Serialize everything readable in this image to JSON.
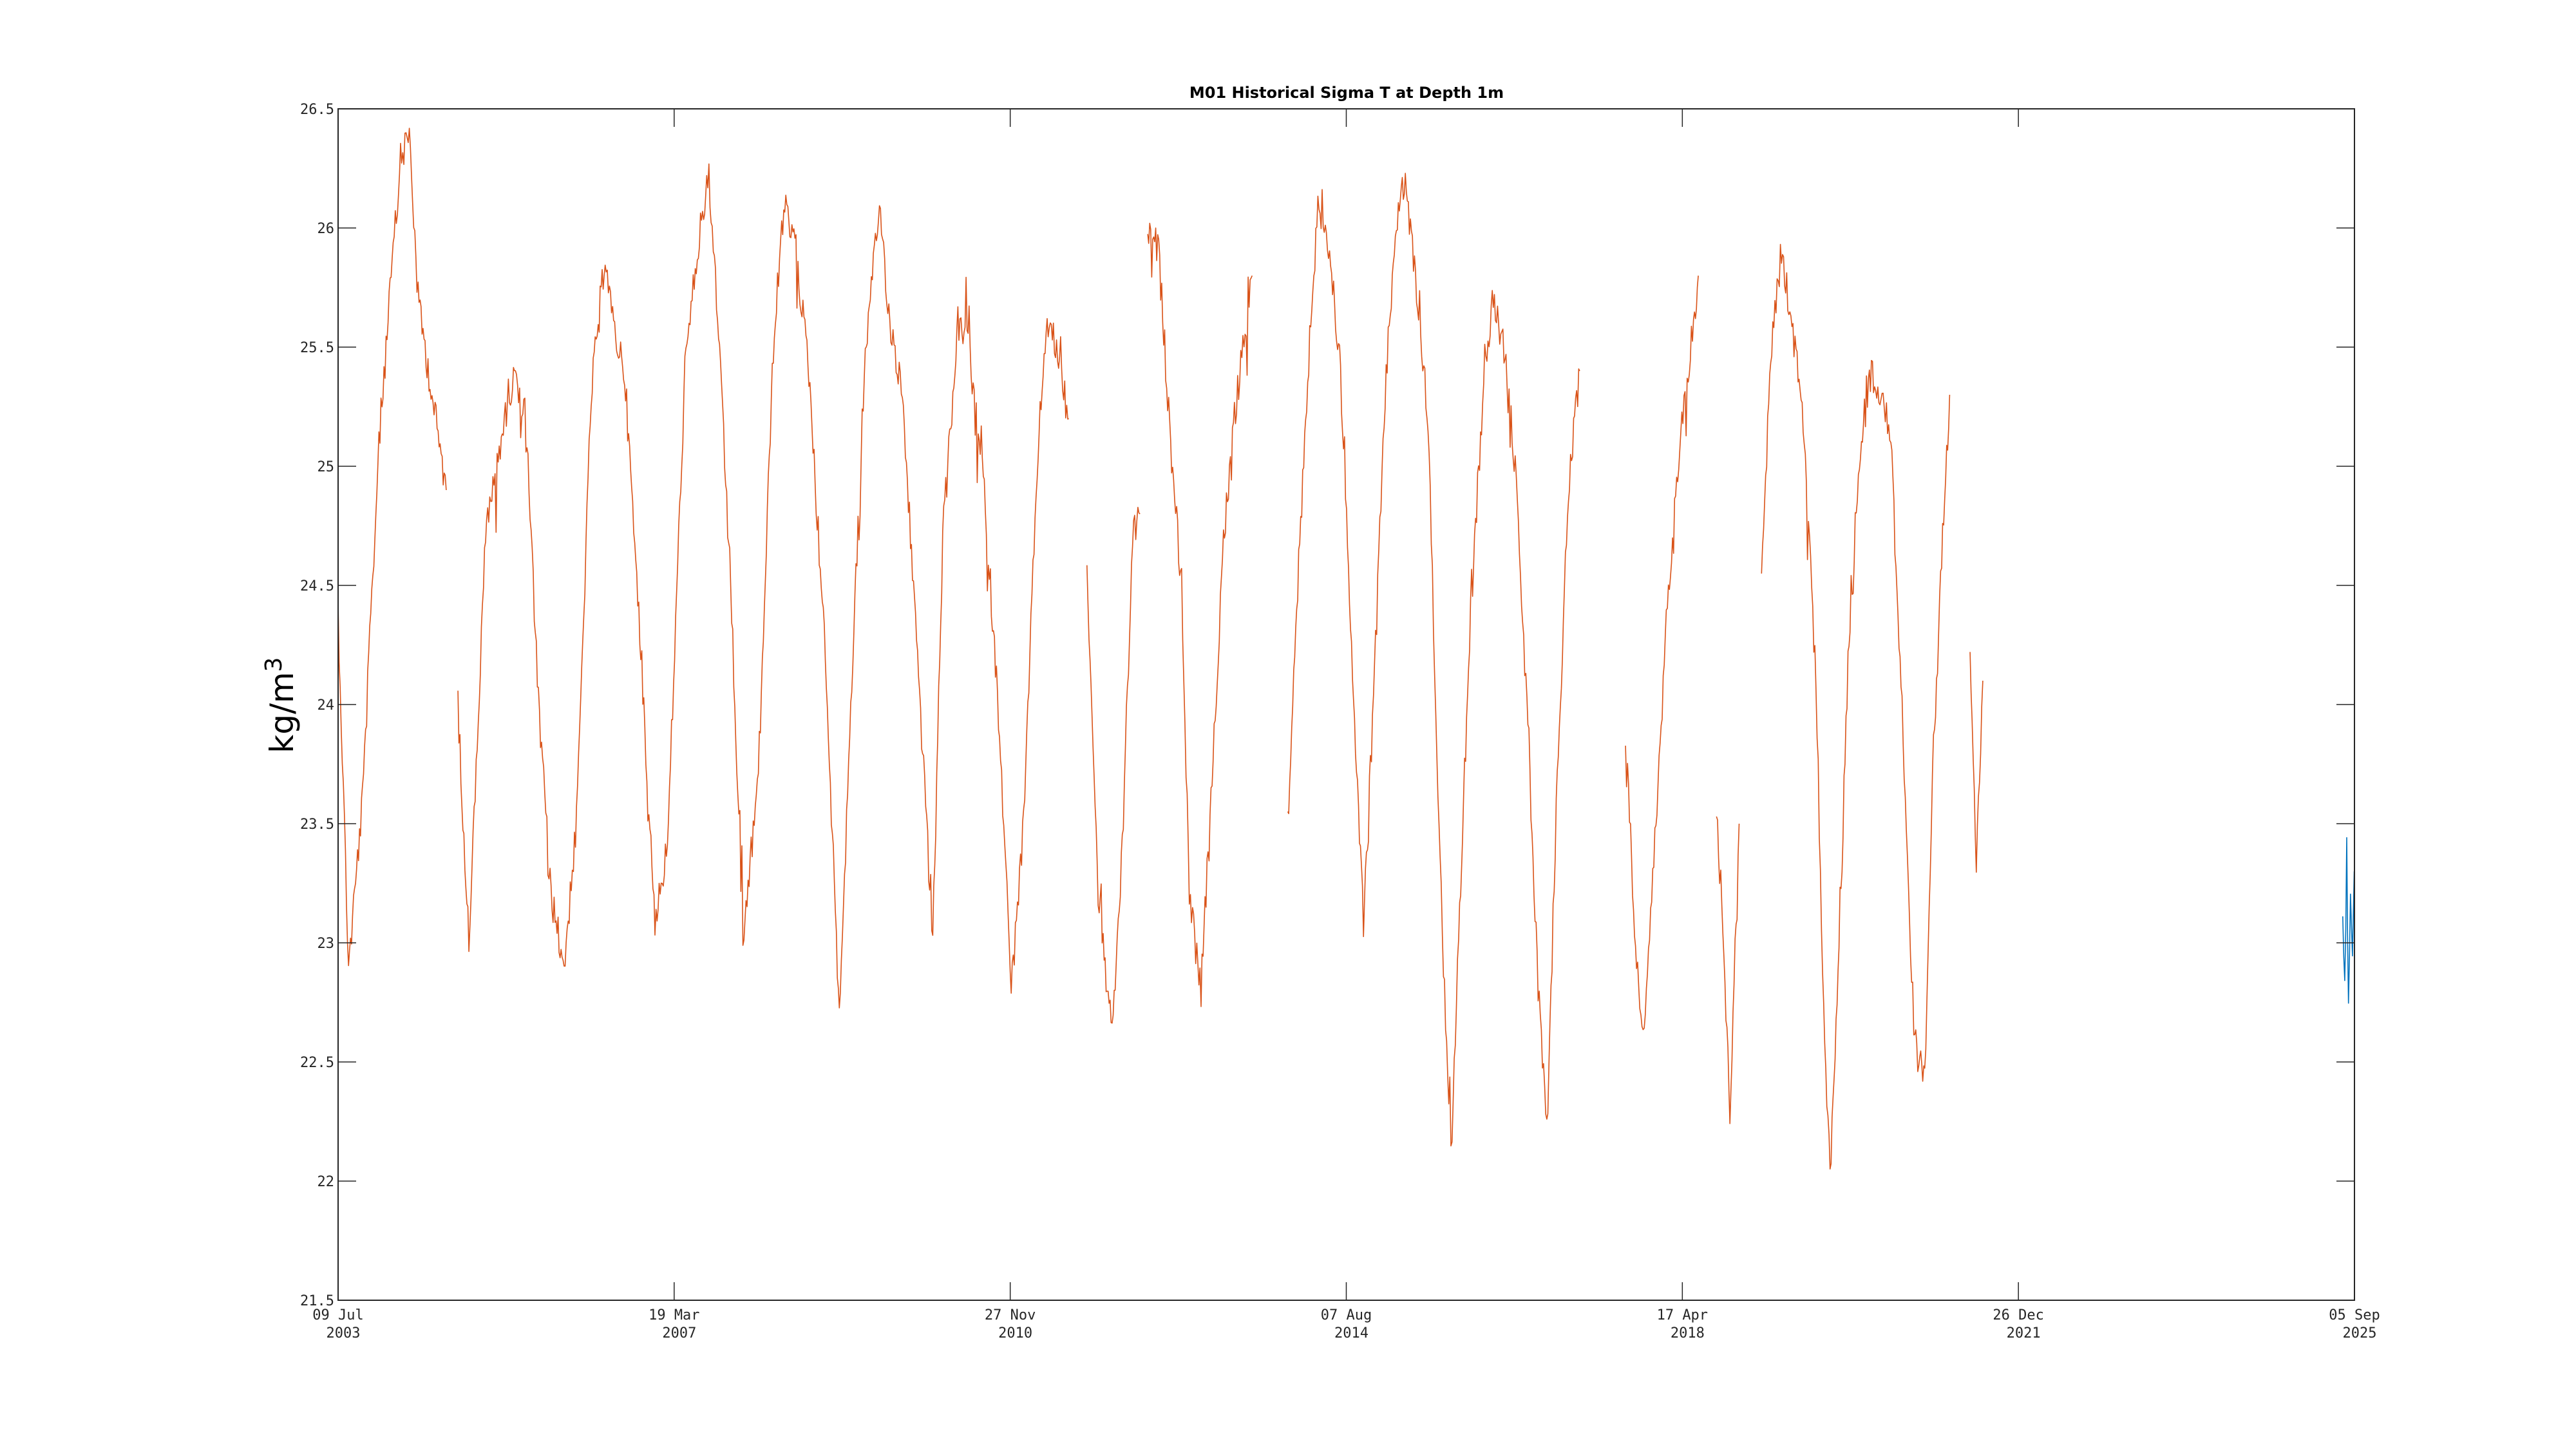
{
  "chart_data": {
    "type": "line",
    "title": "M01 Historical Sigma T at Depth 1m",
    "xlabel": "",
    "ylabel": "kg/m",
    "ylabel_superscript": "3",
    "ylim": [
      21.5,
      26.5
    ],
    "xlim": [
      "2003-07-09",
      "2025-09-05"
    ],
    "yticks": [
      "21.5",
      "22",
      "22.5",
      "23",
      "23.5",
      "24",
      "24.5",
      "25",
      "25.5",
      "26",
      "26.5"
    ],
    "xticks": [
      {
        "date": "2003-07-09",
        "line1": "09 Jul",
        "line2": "2003"
      },
      {
        "date": "2007-03-19",
        "line1": "19 Mar",
        "line2": "2007"
      },
      {
        "date": "2010-11-27",
        "line1": "27 Nov",
        "line2": "2010"
      },
      {
        "date": "2014-08-07",
        "line1": "07 Aug",
        "line2": "2014"
      },
      {
        "date": "2018-04-17",
        "line1": "17 Apr",
        "line2": "2018"
      },
      {
        "date": "2021-12-26",
        "line1": "26 Dec",
        "line2": "2021"
      },
      {
        "date": "2025-09-05",
        "line1": "05 Sep",
        "line2": "2025"
      }
    ],
    "grid": false,
    "legend": "none",
    "series": [
      {
        "color": "#d95319",
        "segments": [
          [
            [
              "2003-07-09",
              24.4
            ],
            [
              "2003-08-20",
              22.9
            ],
            [
              "2003-10-15",
              23.6
            ],
            [
              "2003-12-20",
              25.1
            ],
            [
              "2004-02-15",
              25.9
            ],
            [
              "2004-03-20",
              26.3
            ],
            [
              "2004-04-20",
              26.4
            ],
            [
              "2004-05-25",
              25.7
            ],
            [
              "2004-07-20",
              25.3
            ],
            [
              "2004-09-15",
              24.9
            ]
          ],
          [
            [
              "2004-11-01",
              24.0
            ],
            [
              "2004-12-15",
              23.0
            ],
            [
              "2005-02-20",
              24.7
            ],
            [
              "2005-04-20",
              25.1
            ],
            [
              "2005-06-20",
              25.4
            ],
            [
              "2005-08-01",
              25.2
            ],
            [
              "2005-09-20",
              24.0
            ],
            [
              "2005-11-10",
              23.2
            ],
            [
              "2006-01-01",
              22.9
            ],
            [
              "2006-02-20",
              23.5
            ],
            [
              "2006-04-20",
              25.3
            ],
            [
              "2006-06-15",
              25.9
            ],
            [
              "2006-07-15",
              25.6
            ],
            [
              "2006-09-01",
              25.4
            ],
            [
              "2006-11-01",
              24.3
            ],
            [
              "2007-01-01",
              23.1
            ],
            [
              "2007-02-20",
              23.4
            ],
            [
              "2007-05-01",
              25.4
            ],
            [
              "2007-06-20",
              25.9
            ],
            [
              "2007-08-01",
              26.2
            ],
            [
              "2007-09-01",
              25.8
            ],
            [
              "2007-11-01",
              24.5
            ],
            [
              "2007-12-20",
              23.0
            ],
            [
              "2008-02-20",
              23.7
            ],
            [
              "2008-04-20",
              25.5
            ],
            [
              "2008-06-01",
              26.1
            ],
            [
              "2008-07-20",
              25.9
            ],
            [
              "2008-09-10",
              25.4
            ],
            [
              "2008-11-15",
              24.2
            ],
            [
              "2009-01-10",
              22.7
            ],
            [
              "2009-03-01",
              24.1
            ],
            [
              "2009-04-20",
              25.4
            ],
            [
              "2009-06-20",
              26.1
            ],
            [
              "2009-08-01",
              25.6
            ],
            [
              "2009-09-20",
              25.3
            ],
            [
              "2009-11-20",
              24.2
            ],
            [
              "2010-01-20",
              23.0
            ],
            [
              "2010-03-01",
              24.7
            ],
            [
              "2010-05-01",
              25.6
            ],
            [
              "2010-06-15",
              25.5
            ],
            [
              "2010-08-15",
              24.9
            ],
            [
              "2010-10-15",
              23.9
            ],
            [
              "2010-12-01",
              22.8
            ],
            [
              "2011-01-20",
              23.5
            ],
            [
              "2011-03-15",
              25.0
            ],
            [
              "2011-04-20",
              25.6
            ],
            [
              "2011-06-01",
              25.5
            ],
            [
              "2011-07-20",
              25.2
            ]
          ],
          [
            [
              "2011-10-01",
              24.6
            ],
            [
              "2011-11-15",
              23.2
            ],
            [
              "2012-01-10",
              22.6
            ],
            [
              "2012-02-20",
              23.4
            ],
            [
              "2012-04-01",
              24.7
            ],
            [
              "2012-05-01",
              24.8
            ]
          ],
          [
            [
              "2012-06-01",
              26.0
            ],
            [
              "2012-07-15",
              25.9
            ],
            [
              "2012-09-01",
              25.1
            ],
            [
              "2012-10-15",
              24.5
            ],
            [
              "2012-11-15",
              23.2
            ],
            [
              "2013-01-01",
              22.8
            ],
            [
              "2013-02-10",
              23.6
            ],
            [
              "2013-04-01",
              24.7
            ],
            [
              "2013-05-15",
              25.2
            ],
            [
              "2013-07-01",
              25.6
            ],
            [
              "2013-07-25",
              25.8
            ]
          ],
          [
            [
              "2013-12-15",
              23.5
            ],
            [
              "2014-01-20",
              24.4
            ],
            [
              "2014-03-01",
              25.3
            ],
            [
              "2014-04-15",
              26.1
            ],
            [
              "2014-06-01",
              25.9
            ],
            [
              "2014-07-15",
              25.4
            ],
            [
              "2014-09-01",
              24.1
            ],
            [
              "2014-10-15",
              23.1
            ],
            [
              "2014-11-20",
              23.9
            ],
            [
              "2015-01-10",
              25.3
            ],
            [
              "2015-02-20",
              26.0
            ],
            [
              "2015-04-01",
              26.2
            ],
            [
              "2015-05-20",
              25.7
            ],
            [
              "2015-07-01",
              25.2
            ],
            [
              "2015-08-01",
              24.0
            ],
            [
              "2015-09-01",
              22.9
            ],
            [
              "2015-10-01",
              22.1
            ],
            [
              "2015-11-01",
              23.0
            ],
            [
              "2015-12-15",
              24.3
            ],
            [
              "2016-02-01",
              25.2
            ],
            [
              "2016-03-15",
              25.7
            ],
            [
              "2016-05-01",
              25.5
            ],
            [
              "2016-06-15",
              25.0
            ],
            [
              "2016-08-01",
              24.0
            ],
            [
              "2016-09-15",
              22.8
            ],
            [
              "2016-10-20",
              22.2
            ],
            [
              "2016-12-01",
              23.7
            ],
            [
              "2017-01-15",
              24.9
            ],
            [
              "2017-03-01",
              25.4
            ]
          ],
          [
            [
              "2017-09-01",
              23.9
            ],
            [
              "2017-10-15",
              22.9
            ],
            [
              "2017-11-15",
              22.6
            ],
            [
              "2018-01-01",
              23.5
            ],
            [
              "2018-02-20",
              24.5
            ],
            [
              "2018-04-15",
              25.2
            ],
            [
              "2018-06-01",
              25.6
            ],
            [
              "2018-06-20",
              25.8
            ]
          ],
          [
            [
              "2018-09-01",
              23.6
            ],
            [
              "2018-10-01",
              22.9
            ],
            [
              "2018-10-25",
              22.3
            ],
            [
              "2018-12-01",
              23.5
            ]
          ],
          [
            [
              "2019-03-01",
              24.6
            ],
            [
              "2019-04-15",
              25.6
            ],
            [
              "2019-05-20",
              25.9
            ],
            [
              "2019-07-01",
              25.6
            ],
            [
              "2019-08-15",
              25.2
            ],
            [
              "2019-10-01",
              24.3
            ],
            [
              "2019-11-01",
              22.9
            ],
            [
              "2019-12-01",
              22.0
            ],
            [
              "2020-01-10",
              23.1
            ],
            [
              "2020-02-15",
              24.3
            ],
            [
              "2020-04-01",
              25.1
            ],
            [
              "2020-05-15",
              25.4
            ],
            [
              "2020-07-01",
              25.3
            ],
            [
              "2020-08-01",
              25.1
            ],
            [
              "2020-09-15",
              24.0
            ],
            [
              "2020-11-01",
              22.6
            ],
            [
              "2020-12-15",
              22.4
            ],
            [
              "2021-01-15",
              23.7
            ],
            [
              "2021-03-01",
              24.8
            ],
            [
              "2021-03-25",
              25.3
            ]
          ],
          [
            [
              "2021-06-15",
              24.2
            ],
            [
              "2021-07-10",
              23.3
            ],
            [
              "2021-08-05",
              24.1
            ]
          ]
        ]
      },
      {
        "color": "#0072bd",
        "segments": [
          [
            [
              "2025-07-20",
              23.1
            ],
            [
              "2025-07-28",
              22.8
            ],
            [
              "2025-08-05",
              23.4
            ],
            [
              "2025-08-12",
              22.6
            ],
            [
              "2025-08-20",
              23.2
            ],
            [
              "2025-08-28",
              22.9
            ],
            [
              "2025-09-04",
              23.3
            ]
          ]
        ]
      }
    ]
  }
}
